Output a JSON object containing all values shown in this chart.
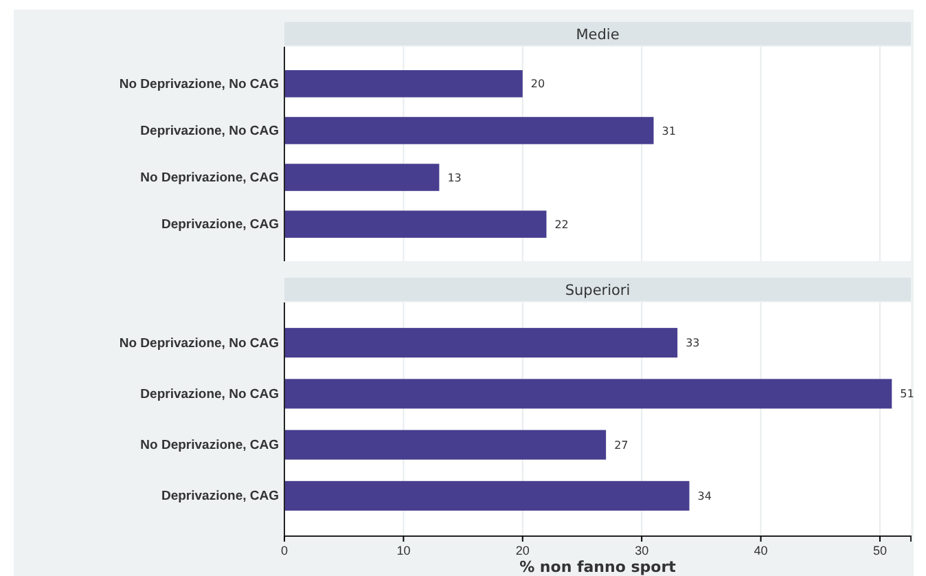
{
  "chart_data": [
    {
      "type": "bar",
      "orientation": "horizontal",
      "title": "Medie",
      "categories": [
        "No Deprivazione, No CAG",
        "Deprivazione, No CAG",
        "No Deprivazione, CAG",
        "Deprivazione, CAG"
      ],
      "values": [
        20,
        31,
        13,
        22
      ],
      "color": "#473e8f",
      "xlim": [
        0,
        52.6
      ],
      "xticks": [
        0,
        10,
        20,
        30,
        40,
        50
      ],
      "grid": "x",
      "data_labels": true,
      "tick_labels": "y"
    },
    {
      "type": "bar",
      "orientation": "horizontal",
      "title": "Superiori",
      "categories": [
        "No Deprivazione, No CAG",
        "Deprivazione, No CAG",
        "No Deprivazione, CAG",
        "Deprivazione, CAG"
      ],
      "values": [
        33,
        51,
        27,
        34
      ],
      "color": "#473e8f",
      "xlim": [
        0,
        52.6
      ],
      "xticks": [
        0,
        10,
        20,
        30,
        40,
        50
      ],
      "grid": "x",
      "data_labels": true,
      "xlabel": "% non fanno sport"
    }
  ]
}
